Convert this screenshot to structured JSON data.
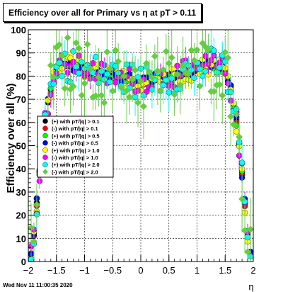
{
  "chart_data": {
    "type": "scatter",
    "title": "Efficiency over all for Primary vs   η at pT > 0.11",
    "xlabel": "η",
    "ylabel": "Efficiency over all (%)",
    "xlim": [
      -2,
      2
    ],
    "ylim": [
      0,
      100
    ],
    "x_ticks": [
      "−2",
      "−1.5",
      "−1",
      "−0.5",
      "0",
      "0.5",
      "1",
      "1.5",
      "2"
    ],
    "y_ticks": [
      "0",
      "10",
      "20",
      "30",
      "40",
      "50",
      "60",
      "70",
      "80",
      "90",
      "100"
    ],
    "grid": true,
    "legend_position": "left-middle",
    "series": [
      {
        "name": "(+) with pT/|q| > 0.1",
        "color": "#000000",
        "marker": "circle"
      },
      {
        "name": "(-) with pT/|q| > 0.1",
        "color": "#ff0000",
        "marker": "circle"
      },
      {
        "name": "(+) with pT/|q| > 0.5",
        "color": "#00ff00",
        "marker": "circle"
      },
      {
        "name": "(-) with pT/|q| > 0.5",
        "color": "#0000ff",
        "marker": "circle"
      },
      {
        "name": "(+) with pT/|q| > 1.0",
        "color": "#ffff00",
        "marker": "circle"
      },
      {
        "name": "(-) with pT/|q| > 1.0",
        "color": "#ff00ff",
        "marker": "circle"
      },
      {
        "name": "(+) with pT/|q| > 2.0",
        "color": "#00ffff",
        "marker": "circle"
      },
      {
        "name": "(-) with pT/|q| > 2.0",
        "color": "#66cc44",
        "marker": "diamond"
      }
    ],
    "curve_points": [
      [
        -1.95,
        3
      ],
      [
        -1.9,
        12
      ],
      [
        -1.85,
        25
      ],
      [
        -1.8,
        38
      ],
      [
        -1.75,
        50
      ],
      [
        -1.7,
        60
      ],
      [
        -1.65,
        68
      ],
      [
        -1.6,
        74
      ],
      [
        -1.55,
        78
      ],
      [
        -1.5,
        82
      ],
      [
        -1.4,
        84.5
      ],
      [
        -1.3,
        85
      ],
      [
        -1.2,
        84.5
      ],
      [
        -1.1,
        84
      ],
      [
        -1.0,
        83
      ],
      [
        -0.9,
        82
      ],
      [
        -0.8,
        82
      ],
      [
        -0.7,
        81
      ],
      [
        -0.6,
        80
      ],
      [
        -0.5,
        80
      ],
      [
        -0.4,
        80
      ],
      [
        -0.3,
        79
      ],
      [
        -0.2,
        79
      ],
      [
        -0.1,
        78
      ],
      [
        0.0,
        77
      ],
      [
        0.1,
        78
      ],
      [
        0.2,
        79
      ],
      [
        0.3,
        79
      ],
      [
        0.4,
        80
      ],
      [
        0.5,
        80
      ],
      [
        0.6,
        80
      ],
      [
        0.7,
        81
      ],
      [
        0.8,
        82
      ],
      [
        0.9,
        82
      ],
      [
        1.0,
        83
      ],
      [
        1.1,
        84
      ],
      [
        1.2,
        84.5
      ],
      [
        1.3,
        85
      ],
      [
        1.4,
        84.5
      ],
      [
        1.5,
        82
      ],
      [
        1.55,
        78
      ],
      [
        1.6,
        74
      ],
      [
        1.65,
        68
      ],
      [
        1.7,
        60
      ],
      [
        1.75,
        50
      ],
      [
        1.8,
        38
      ],
      [
        1.85,
        25
      ],
      [
        1.9,
        12
      ],
      [
        1.95,
        3
      ]
    ]
  },
  "footer": {
    "date": "Wed Nov 11 11:00:35 2020"
  }
}
